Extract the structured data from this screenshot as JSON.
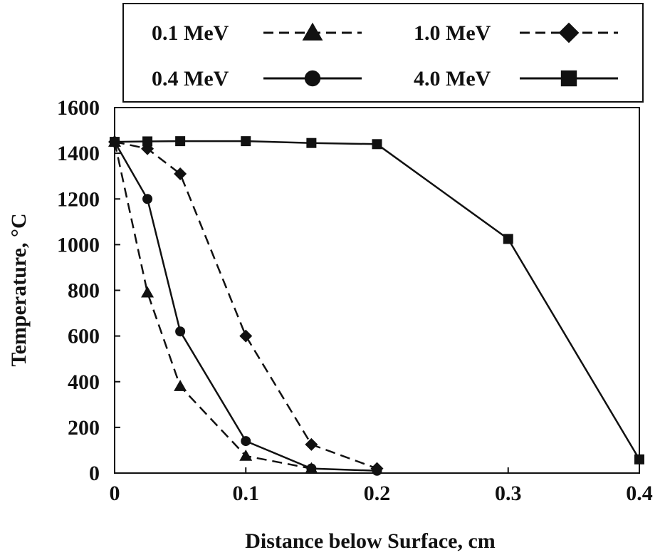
{
  "chart_data": {
    "type": "line",
    "title": "",
    "xlabel": "Distance below Surface, cm",
    "ylabel": "Temperature, °C",
    "xlim": [
      0,
      0.4
    ],
    "ylim": [
      0,
      1600
    ],
    "xticks": [
      0,
      0.1,
      0.2,
      0.3,
      0.4
    ],
    "xtick_labels": [
      "0",
      "0.1",
      "0.2",
      "0.3",
      "0.4"
    ],
    "yticks": [
      0,
      200,
      400,
      600,
      800,
      1000,
      1200,
      1400,
      1600
    ],
    "ytick_labels": [
      "0",
      "200",
      "400",
      "600",
      "800",
      "1000",
      "1200",
      "1400",
      "1600"
    ],
    "grid": false,
    "legend_position": "top",
    "series": [
      {
        "name": "0.1 MeV",
        "marker": "triangle",
        "dash": true,
        "x": [
          0,
          0.025,
          0.05,
          0.1,
          0.15
        ],
        "y": [
          1450,
          790,
          380,
          75,
          20
        ]
      },
      {
        "name": "1.0 MeV",
        "marker": "diamond",
        "dash": true,
        "x": [
          0,
          0.025,
          0.05,
          0.1,
          0.15,
          0.2
        ],
        "y": [
          1450,
          1420,
          1310,
          600,
          125,
          20
        ]
      },
      {
        "name": "0.4 MeV",
        "marker": "circle",
        "dash": false,
        "x": [
          0,
          0.025,
          0.05,
          0.1,
          0.15,
          0.2
        ],
        "y": [
          1450,
          1200,
          620,
          140,
          20,
          10
        ]
      },
      {
        "name": "4.0 MeV",
        "marker": "square",
        "dash": false,
        "x": [
          0,
          0.025,
          0.05,
          0.1,
          0.15,
          0.2,
          0.3,
          0.4
        ],
        "y": [
          1450,
          1452,
          1453,
          1453,
          1445,
          1440,
          1025,
          60
        ]
      }
    ]
  }
}
